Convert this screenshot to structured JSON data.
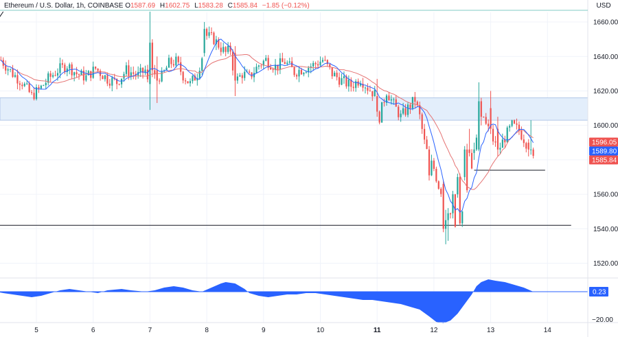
{
  "header": {
    "symbol": "Ethereum / U.S. Dollar, 1h, COINBASE",
    "open_label": "O",
    "open": "1587.69",
    "high_label": "H",
    "high": "1602.75",
    "low_label": "L",
    "low": "1583.28",
    "close_label": "C",
    "close": "1585.84",
    "change": "−1.85 (−0.12%)"
  },
  "currency": "USD",
  "colors": {
    "up": "#26a69a",
    "down": "#ef5350",
    "ma_fast": "#2962ff",
    "ma_slow": "#e57373",
    "zone": "#e3eefb",
    "osc": "#2962ff",
    "axis_text": "#131722",
    "grid": "#f0f3fa"
  },
  "chart_data": {
    "type": "candlestick",
    "timeframe": "1h",
    "ylim": [
      1515,
      1675
    ],
    "y_ticks": [
      1520,
      1540,
      1560,
      1580,
      1600,
      1620,
      1640,
      1660
    ],
    "x_ticks": [
      {
        "label": "5",
        "t": 0
      },
      {
        "label": "6",
        "t": 24
      },
      {
        "label": "7",
        "t": 48
      },
      {
        "label": "8",
        "t": 72
      },
      {
        "label": "9",
        "t": 96
      },
      {
        "label": "10",
        "t": 120
      },
      {
        "label": "11",
        "t": 144
      },
      {
        "label": "12",
        "t": 168
      },
      {
        "label": "13",
        "t": 192
      },
      {
        "label": "14",
        "t": 216
      }
    ],
    "anchors": [
      [
        -15,
        1638
      ],
      [
        -10,
        1630
      ],
      [
        -6,
        1625
      ],
      [
        -2,
        1617
      ],
      [
        2,
        1622
      ],
      [
        5,
        1627
      ],
      [
        9,
        1632
      ],
      [
        13,
        1635
      ],
      [
        17,
        1630
      ],
      [
        21,
        1628
      ],
      [
        25,
        1633
      ],
      [
        30,
        1627
      ],
      [
        34,
        1625
      ],
      [
        38,
        1632
      ],
      [
        43,
        1629
      ],
      [
        46,
        1632
      ],
      [
        48,
        1618
      ],
      [
        49,
        1649
      ],
      [
        50,
        1630
      ],
      [
        53,
        1628
      ],
      [
        56,
        1636
      ],
      [
        59,
        1637
      ],
      [
        62,
        1629
      ],
      [
        65,
        1624
      ],
      [
        68,
        1630
      ],
      [
        70,
        1640
      ],
      [
        72,
        1652
      ],
      [
        75,
        1650
      ],
      [
        78,
        1645
      ],
      [
        80,
        1642
      ],
      [
        82,
        1644
      ],
      [
        84,
        1625
      ],
      [
        87,
        1630
      ],
      [
        90,
        1628
      ],
      [
        94,
        1635
      ],
      [
        97,
        1638
      ],
      [
        101,
        1634
      ],
      [
        105,
        1637
      ],
      [
        109,
        1631
      ],
      [
        113,
        1633
      ],
      [
        117,
        1635
      ],
      [
        121,
        1638
      ],
      [
        125,
        1630
      ],
      [
        129,
        1626
      ],
      [
        133,
        1623
      ],
      [
        137,
        1627
      ],
      [
        140,
        1622
      ],
      [
        143,
        1618
      ],
      [
        145,
        1605
      ],
      [
        148,
        1620
      ],
      [
        151,
        1612
      ],
      [
        154,
        1605
      ],
      [
        157,
        1610
      ],
      [
        160,
        1615
      ],
      [
        162,
        1605
      ],
      [
        164,
        1590
      ],
      [
        166,
        1580
      ],
      [
        168,
        1575
      ],
      [
        170,
        1565
      ],
      [
        172,
        1560
      ],
      [
        174,
        1554
      ],
      [
        176,
        1545
      ],
      [
        178,
        1542
      ],
      [
        180,
        1550
      ],
      [
        182,
        1560
      ],
      [
        184,
        1575
      ],
      [
        186,
        1590
      ],
      [
        188,
        1610
      ],
      [
        190,
        1600
      ],
      [
        192,
        1595
      ],
      [
        195,
        1585
      ],
      [
        198,
        1593
      ],
      [
        201,
        1600
      ],
      [
        204,
        1597
      ],
      [
        207,
        1590
      ],
      [
        210,
        1585
      ]
    ],
    "overrides": [
      {
        "t": 48,
        "o": 1624,
        "h": 1666,
        "l": 1609,
        "c": 1648
      },
      {
        "t": 49,
        "o": 1648,
        "h": 1650,
        "l": 1628,
        "c": 1632
      },
      {
        "t": 51,
        "o": 1632,
        "h": 1640,
        "l": 1613,
        "c": 1626
      },
      {
        "t": 71,
        "o": 1642,
        "h": 1660,
        "l": 1640,
        "c": 1656
      },
      {
        "t": 84,
        "o": 1642,
        "h": 1646,
        "l": 1617,
        "c": 1626
      },
      {
        "t": 144,
        "o": 1617,
        "h": 1627,
        "l": 1605,
        "c": 1608
      },
      {
        "t": 166,
        "o": 1586,
        "h": 1588,
        "l": 1568,
        "c": 1571
      },
      {
        "t": 172,
        "o": 1566,
        "h": 1568,
        "l": 1538,
        "c": 1540
      },
      {
        "t": 173,
        "o": 1540,
        "h": 1551,
        "l": 1531,
        "c": 1545
      },
      {
        "t": 174,
        "o": 1545,
        "h": 1552,
        "l": 1533,
        "c": 1549
      },
      {
        "t": 176,
        "o": 1549,
        "h": 1562,
        "l": 1546,
        "c": 1560
      },
      {
        "t": 178,
        "o": 1560,
        "h": 1572,
        "l": 1558,
        "c": 1570
      },
      {
        "t": 181,
        "o": 1570,
        "h": 1588,
        "l": 1568,
        "c": 1586
      },
      {
        "t": 183,
        "o": 1586,
        "h": 1598,
        "l": 1582,
        "c": 1584
      },
      {
        "t": 185,
        "o": 1584,
        "h": 1590,
        "l": 1580,
        "c": 1586
      },
      {
        "t": 187,
        "o": 1586,
        "h": 1625,
        "l": 1585,
        "c": 1614
      },
      {
        "t": 188,
        "o": 1614,
        "h": 1616,
        "l": 1600,
        "c": 1605
      },
      {
        "t": 192,
        "o": 1610,
        "h": 1620,
        "l": 1595,
        "c": 1598
      },
      {
        "t": 195,
        "o": 1598,
        "h": 1605,
        "l": 1582,
        "c": 1586
      },
      {
        "t": 208,
        "o": 1590,
        "h": 1592,
        "l": 1582,
        "c": 1586
      },
      {
        "t": 209,
        "o": 1586,
        "h": 1603,
        "l": 1583,
        "c": 1586
      }
    ],
    "ma_fast_period": 8,
    "ma_slow_period": 20,
    "zone": {
      "low": 1603,
      "high": 1616
    },
    "hlines": [
      {
        "y": 1542,
        "from": -20,
        "to": 226
      },
      {
        "y": 1574,
        "from": 185,
        "to": 215
      }
    ],
    "trendline": {
      "from": [
        -20,
        1654
      ],
      "to": [
        -14,
        1666
      ]
    },
    "oscillator": {
      "right_label": "0.23",
      "scale_label": "−20.00",
      "points": [
        [
          -20,
          1
        ],
        [
          -14,
          -1
        ],
        [
          -10,
          -2
        ],
        [
          -6,
          -3
        ],
        [
          -2,
          -4
        ],
        [
          2,
          -3
        ],
        [
          6,
          -1
        ],
        [
          10,
          1
        ],
        [
          14,
          2
        ],
        [
          18,
          1
        ],
        [
          22,
          0
        ],
        [
          26,
          -1
        ],
        [
          30,
          1
        ],
        [
          36,
          2
        ],
        [
          40,
          1
        ],
        [
          46,
          0
        ],
        [
          50,
          1
        ],
        [
          54,
          3
        ],
        [
          58,
          4
        ],
        [
          62,
          3
        ],
        [
          66,
          1
        ],
        [
          70,
          0
        ],
        [
          74,
          3
        ],
        [
          78,
          6
        ],
        [
          80,
          7
        ],
        [
          84,
          6
        ],
        [
          88,
          2
        ],
        [
          90,
          -1
        ],
        [
          94,
          -3
        ],
        [
          98,
          -4
        ],
        [
          102,
          -3
        ],
        [
          106,
          -2
        ],
        [
          110,
          -2
        ],
        [
          114,
          -1
        ],
        [
          118,
          -1
        ],
        [
          122,
          -2
        ],
        [
          126,
          -3
        ],
        [
          130,
          -4
        ],
        [
          134,
          -5
        ],
        [
          138,
          -6
        ],
        [
          142,
          -6
        ],
        [
          146,
          -7
        ],
        [
          150,
          -8
        ],
        [
          154,
          -9
        ],
        [
          158,
          -11
        ],
        [
          162,
          -13
        ],
        [
          166,
          -18
        ],
        [
          169,
          -22
        ],
        [
          172,
          -23
        ],
        [
          175,
          -21
        ],
        [
          178,
          -16
        ],
        [
          181,
          -9
        ],
        [
          184,
          -2
        ],
        [
          186,
          4
        ],
        [
          188,
          7
        ],
        [
          191,
          9
        ],
        [
          194,
          8
        ],
        [
          198,
          7
        ],
        [
          202,
          5
        ],
        [
          206,
          3
        ],
        [
          210,
          0
        ]
      ]
    },
    "last_price_labels": [
      {
        "y": 1596.05,
        "text": "1596.05",
        "color": "#ef5350"
      },
      {
        "y": 1589.8,
        "text": "1589.80",
        "color": "#2962ff"
      },
      {
        "y": 1585.84,
        "text": "1585.84",
        "color": "#ef5350"
      }
    ]
  }
}
